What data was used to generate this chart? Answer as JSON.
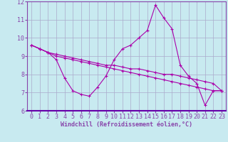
{
  "xlabel": "Windchill (Refroidissement éolien,°C)",
  "ylabel": "",
  "bg_color": "#c8eaf0",
  "grid_color": "#aaaacc",
  "line_color": "#aa00aa",
  "axis_color": "#8844aa",
  "xlim": [
    -0.5,
    23.5
  ],
  "ylim": [
    6,
    12
  ],
  "yticks": [
    6,
    7,
    8,
    9,
    10,
    11,
    12
  ],
  "xticks": [
    0,
    1,
    2,
    3,
    4,
    5,
    6,
    7,
    8,
    9,
    10,
    11,
    12,
    13,
    14,
    15,
    16,
    17,
    18,
    19,
    20,
    21,
    22,
    23
  ],
  "series1_x": [
    0,
    1,
    2,
    3,
    4,
    5,
    6,
    7,
    8,
    9,
    10,
    11,
    12,
    13,
    14,
    15,
    16,
    17,
    18,
    19,
    20,
    21,
    22,
    23
  ],
  "series1_y": [
    9.6,
    9.4,
    9.2,
    8.8,
    7.8,
    7.1,
    6.9,
    6.8,
    7.3,
    7.9,
    8.8,
    9.4,
    9.6,
    10.0,
    10.4,
    11.8,
    11.1,
    10.5,
    8.5,
    7.9,
    7.5,
    6.3,
    7.1,
    7.1
  ],
  "series2_x": [
    0,
    1,
    2,
    3,
    4,
    5,
    6,
    7,
    8,
    9,
    10,
    11,
    12,
    13,
    14,
    15,
    16,
    17,
    18,
    19,
    20,
    21,
    22,
    23
  ],
  "series2_y": [
    9.6,
    9.4,
    9.2,
    9.1,
    9.0,
    8.9,
    8.8,
    8.7,
    8.6,
    8.5,
    8.5,
    8.4,
    8.3,
    8.3,
    8.2,
    8.1,
    8.0,
    8.0,
    7.9,
    7.8,
    7.7,
    7.6,
    7.5,
    7.1
  ],
  "series3_x": [
    0,
    1,
    2,
    3,
    4,
    5,
    6,
    7,
    8,
    9,
    10,
    11,
    12,
    13,
    14,
    15,
    16,
    17,
    18,
    19,
    20,
    21,
    22,
    23
  ],
  "series3_y": [
    9.6,
    9.4,
    9.2,
    9.0,
    8.9,
    8.8,
    8.7,
    8.6,
    8.5,
    8.4,
    8.3,
    8.2,
    8.1,
    8.0,
    7.9,
    7.8,
    7.7,
    7.6,
    7.5,
    7.4,
    7.3,
    7.2,
    7.1,
    7.1
  ],
  "tick_fontsize": 6,
  "xlabel_fontsize": 6
}
